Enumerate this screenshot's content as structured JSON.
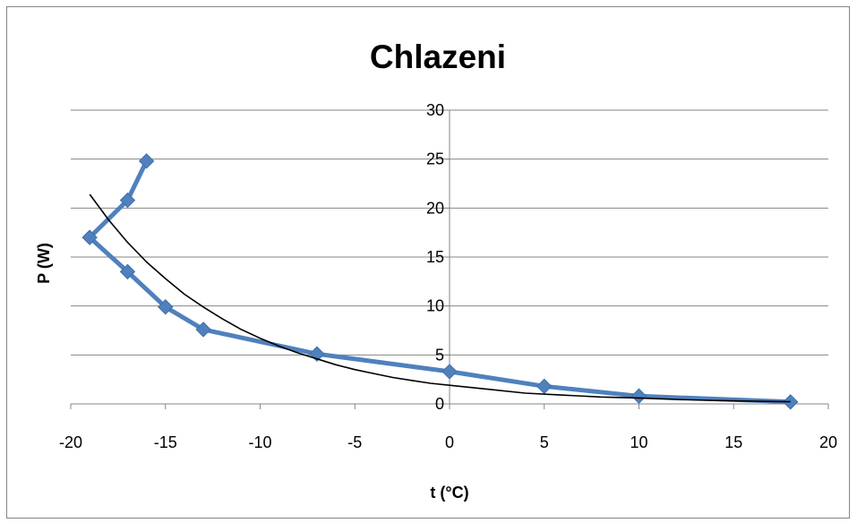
{
  "chart_data": {
    "type": "line",
    "title": "Chlazeni",
    "xlabel": "t (°C)",
    "ylabel": "P (W)",
    "xlim": [
      -20,
      20
    ],
    "ylim": [
      0,
      30
    ],
    "xticks": [
      -20,
      -15,
      -10,
      -5,
      0,
      5,
      10,
      15,
      20
    ],
    "yticks": [
      0,
      5,
      10,
      15,
      20,
      25,
      30
    ],
    "grid": "horizontal",
    "legend": "none",
    "series": [
      {
        "color": "#4f81bd",
        "marker": "diamond",
        "x": [
          -16,
          -17,
          -19,
          -17,
          -15,
          -13,
          -7,
          0,
          5,
          10,
          18
        ],
        "y": [
          24.8,
          20.8,
          17.0,
          13.5,
          9.9,
          7.6,
          5.1,
          3.3,
          1.8,
          0.8,
          0.2
        ]
      },
      {
        "type": "trendline",
        "color": "#000000",
        "x": [
          -19,
          -18,
          -17,
          -16,
          -15,
          -14,
          -13,
          -12,
          -11,
          -10,
          -9,
          -8,
          -7,
          -6,
          -5,
          -4,
          -3,
          -2,
          -1,
          0,
          2,
          4,
          6,
          8,
          10,
          12,
          14,
          16,
          18
        ],
        "y": [
          21.4,
          18.8,
          16.5,
          14.5,
          12.8,
          11.2,
          9.9,
          8.7,
          7.6,
          6.7,
          5.9,
          5.2,
          4.6,
          4.0,
          3.5,
          3.1,
          2.7,
          2.4,
          2.1,
          1.9,
          1.5,
          1.1,
          0.9,
          0.7,
          0.6,
          0.45,
          0.35,
          0.28,
          0.22
        ]
      }
    ]
  }
}
